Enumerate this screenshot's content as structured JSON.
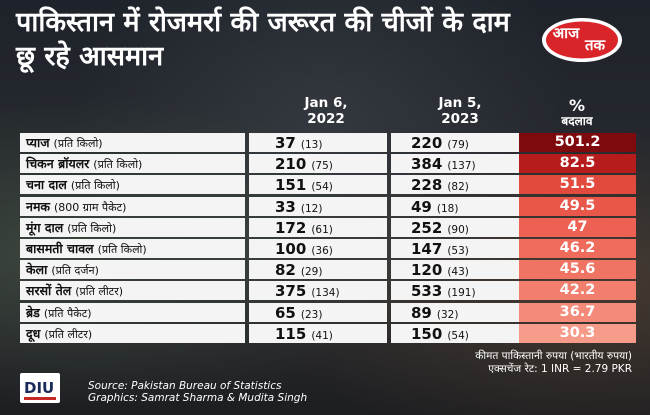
{
  "title": "पाकिस्तान में रोजमर्रा की जरूरत की चीजों के दाम छू रहे आसमान",
  "logo": {
    "text": "आज तक",
    "text_top": "आज",
    "text_bottom": "तक",
    "color": "#d9252a"
  },
  "headers": {
    "col1_line1": "Jan 6,",
    "col1_line2": "2022",
    "col2_line1": "Jan 5,",
    "col2_line2": "2023",
    "pct_symbol": "%",
    "pct_label": "बदलाव"
  },
  "chart_data": {
    "type": "table",
    "title": "पाकिस्तान में रोजमर्रा की जरूरत की चीजों के दाम छू रहे आसमान",
    "columns": [
      "Jan 6, 2022",
      "Jan 5, 2023",
      "% बदलाव"
    ],
    "rows": [
      {
        "item": "प्याज",
        "unit": "(प्रति किलो)",
        "v2022": "37",
        "v2022_inr": "(13)",
        "v2023": "220",
        "v2023_inr": "(79)",
        "pct": "501.2",
        "pct_value": 501.2,
        "color": "#7e0a0e"
      },
      {
        "item": "चिकन ब्रॉयलर",
        "unit": "(प्रति किलो)",
        "v2022": "210",
        "v2022_inr": "(75)",
        "v2023": "384",
        "v2023_inr": "(137)",
        "pct": "82.5",
        "pct_value": 82.5,
        "color": "#b71c1c"
      },
      {
        "item": "चना दाल",
        "unit": "(प्रति किलो)",
        "v2022": "151",
        "v2022_inr": "(54)",
        "v2023": "228",
        "v2023_inr": "(82)",
        "pct": "51.5",
        "pct_value": 51.5,
        "color": "#e34a3e"
      },
      {
        "item": "नमक",
        "unit": "(800 ग्राम पैकेट)",
        "v2022": "33",
        "v2022_inr": "(12)",
        "v2023": "49",
        "v2023_inr": "(18)",
        "pct": "49.5",
        "pct_value": 49.5,
        "color": "#e8574a"
      },
      {
        "item": "मूंग दाल",
        "unit": "(प्रति किलो)",
        "v2022": "172",
        "v2022_inr": "(61)",
        "v2023": "252",
        "v2023_inr": "(90)",
        "pct": "47",
        "pct_value": 47,
        "color": "#ec6153"
      },
      {
        "item": "बासमती चावल",
        "unit": "(प्रति किलो)",
        "v2022": "100",
        "v2022_inr": "(36)",
        "v2023": "147",
        "v2023_inr": "(53)",
        "pct": "46.2",
        "pct_value": 46.2,
        "color": "#ef6b5c"
      },
      {
        "item": "केला",
        "unit": "(प्रति दर्जन)",
        "v2022": "82",
        "v2022_inr": "(29)",
        "v2023": "120",
        "v2023_inr": "(43)",
        "pct": "45.6",
        "pct_value": 45.6,
        "color": "#f07464"
      },
      {
        "item": "सरसों तेल",
        "unit": "(प्रति लीटर)",
        "v2022": "375",
        "v2022_inr": "(134)",
        "v2023": "533",
        "v2023_inr": "(191)",
        "pct": "42.2",
        "pct_value": 42.2,
        "color": "#f27e6d"
      },
      {
        "item": "ब्रेड",
        "unit": "(प्रति पैकेट)",
        "v2022": "65",
        "v2022_inr": "(23)",
        "v2023": "89",
        "v2023_inr": "(32)",
        "pct": "36.7",
        "pct_value": 36.7,
        "color": "#f48a79"
      },
      {
        "item": "दूध",
        "unit": "(प्रति लीटर)",
        "v2022": "115",
        "v2022_inr": "(41)",
        "v2023": "150",
        "v2023_inr": "(54)",
        "pct": "30.3",
        "pct_value": 30.3,
        "color": "#f69b8a"
      }
    ]
  },
  "notes": {
    "currency": "कीमत पाकिस्तानी रुपया (भारतीय रुपया)",
    "exchange": "एक्सचेंज रेट: 1 INR = 2.79 PKR"
  },
  "footer": {
    "brand": "DIU",
    "source": "Source: Pakistan Bureau of Statistics",
    "graphics": "Graphics: Samrat Sharma & Mudita Singh"
  }
}
